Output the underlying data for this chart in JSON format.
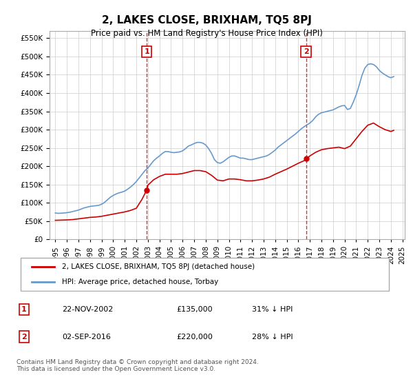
{
  "title": "2, LAKES CLOSE, BRIXHAM, TQ5 8PJ",
  "subtitle": "Price paid vs. HM Land Registry's House Price Index (HPI)",
  "ylabel_ticks": [
    "£0",
    "£50K",
    "£100K",
    "£150K",
    "£200K",
    "£250K",
    "£300K",
    "£350K",
    "£400K",
    "£450K",
    "£500K",
    "£550K"
  ],
  "ytick_values": [
    0,
    50000,
    100000,
    150000,
    200000,
    250000,
    300000,
    350000,
    400000,
    450000,
    500000,
    550000
  ],
  "ylim": [
    0,
    570000
  ],
  "sale1": {
    "date_num": 2002.9,
    "price": 135000,
    "label": "1",
    "date_str": "22-NOV-2002",
    "pct": "31% ↓ HPI"
  },
  "sale2": {
    "date_num": 2016.67,
    "price": 220000,
    "label": "2",
    "date_str": "02-SEP-2016",
    "pct": "28% ↓ HPI"
  },
  "legend_entry1": "2, LAKES CLOSE, BRIXHAM, TQ5 8PJ (detached house)",
  "legend_entry2": "HPI: Average price, detached house, Torbay",
  "table_row1": [
    "1",
    "22-NOV-2002",
    "£135,000",
    "31% ↓ HPI"
  ],
  "table_row2": [
    "2",
    "02-SEP-2016",
    "£220,000",
    "28% ↓ HPI"
  ],
  "footer": "Contains HM Land Registry data © Crown copyright and database right 2024.\nThis data is licensed under the Open Government Licence v3.0.",
  "red_color": "#cc0000",
  "blue_color": "#6699cc",
  "vline_color": "#cc0000",
  "hpi_data": {
    "years": [
      1995.0,
      1995.25,
      1995.5,
      1995.75,
      1996.0,
      1996.25,
      1996.5,
      1996.75,
      1997.0,
      1997.25,
      1997.5,
      1997.75,
      1998.0,
      1998.25,
      1998.5,
      1998.75,
      1999.0,
      1999.25,
      1999.5,
      1999.75,
      2000.0,
      2000.25,
      2000.5,
      2000.75,
      2001.0,
      2001.25,
      2001.5,
      2001.75,
      2002.0,
      2002.25,
      2002.5,
      2002.75,
      2003.0,
      2003.25,
      2003.5,
      2003.75,
      2004.0,
      2004.25,
      2004.5,
      2004.75,
      2005.0,
      2005.25,
      2005.5,
      2005.75,
      2006.0,
      2006.25,
      2006.5,
      2006.75,
      2007.0,
      2007.25,
      2007.5,
      2007.75,
      2008.0,
      2008.25,
      2008.5,
      2008.75,
      2009.0,
      2009.25,
      2009.5,
      2009.75,
      2010.0,
      2010.25,
      2010.5,
      2010.75,
      2011.0,
      2011.25,
      2011.5,
      2011.75,
      2012.0,
      2012.25,
      2012.5,
      2012.75,
      2013.0,
      2013.25,
      2013.5,
      2013.75,
      2014.0,
      2014.25,
      2014.5,
      2014.75,
      2015.0,
      2015.25,
      2015.5,
      2015.75,
      2016.0,
      2016.25,
      2016.5,
      2016.75,
      2017.0,
      2017.25,
      2017.5,
      2017.75,
      2018.0,
      2018.25,
      2018.5,
      2018.75,
      2019.0,
      2019.25,
      2019.5,
      2019.75,
      2020.0,
      2020.25,
      2020.5,
      2020.75,
      2021.0,
      2021.25,
      2021.5,
      2021.75,
      2022.0,
      2022.25,
      2022.5,
      2022.75,
      2023.0,
      2023.25,
      2023.5,
      2023.75,
      2024.0,
      2024.25
    ],
    "values": [
      72000,
      71000,
      71500,
      72000,
      73000,
      74000,
      76000,
      78000,
      80000,
      83000,
      86000,
      88000,
      90000,
      91000,
      92000,
      93000,
      96000,
      101000,
      108000,
      115000,
      120000,
      124000,
      127000,
      129000,
      132000,
      137000,
      143000,
      150000,
      158000,
      168000,
      178000,
      188000,
      195000,
      205000,
      215000,
      222000,
      228000,
      235000,
      240000,
      240000,
      238000,
      237000,
      238000,
      239000,
      242000,
      248000,
      255000,
      258000,
      262000,
      265000,
      265000,
      263000,
      258000,
      248000,
      235000,
      218000,
      210000,
      208000,
      212000,
      218000,
      224000,
      228000,
      228000,
      225000,
      222000,
      222000,
      220000,
      218000,
      218000,
      220000,
      222000,
      224000,
      226000,
      228000,
      232000,
      238000,
      244000,
      252000,
      258000,
      264000,
      270000,
      276000,
      282000,
      288000,
      295000,
      302000,
      308000,
      313000,
      318000,
      325000,
      335000,
      342000,
      346000,
      348000,
      350000,
      352000,
      354000,
      358000,
      362000,
      365000,
      366000,
      355000,
      358000,
      375000,
      395000,
      420000,
      448000,
      468000,
      478000,
      480000,
      478000,
      472000,
      462000,
      455000,
      450000,
      445000,
      442000,
      445000
    ]
  },
  "price_paid_data": {
    "years": [
      1995.0,
      1995.5,
      1996.0,
      1996.5,
      1997.0,
      1997.5,
      1998.0,
      1998.5,
      1999.0,
      1999.5,
      2000.0,
      2000.5,
      2001.0,
      2001.5,
      2002.0,
      2002.5,
      2002.9,
      2003.0,
      2003.5,
      2004.0,
      2004.5,
      2005.0,
      2005.5,
      2006.0,
      2006.5,
      2007.0,
      2007.5,
      2008.0,
      2008.5,
      2009.0,
      2009.5,
      2010.0,
      2010.5,
      2011.0,
      2011.5,
      2012.0,
      2012.5,
      2013.0,
      2013.5,
      2014.0,
      2014.5,
      2015.0,
      2015.5,
      2016.0,
      2016.5,
      2016.67,
      2017.0,
      2017.5,
      2018.0,
      2018.5,
      2019.0,
      2019.5,
      2020.0,
      2020.5,
      2021.0,
      2021.5,
      2022.0,
      2022.5,
      2023.0,
      2023.5,
      2024.0,
      2024.25
    ],
    "values": [
      52000,
      52500,
      53000,
      54000,
      56000,
      58000,
      60000,
      61000,
      63000,
      66000,
      69000,
      72000,
      75000,
      79000,
      85000,
      110000,
      135000,
      148000,
      163000,
      172000,
      178000,
      178000,
      178000,
      180000,
      184000,
      188000,
      188000,
      185000,
      175000,
      162000,
      160000,
      165000,
      165000,
      163000,
      160000,
      160000,
      162000,
      165000,
      170000,
      178000,
      185000,
      192000,
      200000,
      208000,
      215000,
      220000,
      228000,
      238000,
      245000,
      248000,
      250000,
      252000,
      248000,
      255000,
      275000,
      295000,
      312000,
      318000,
      308000,
      300000,
      295000,
      298000
    ]
  },
  "xtick_years": [
    1995,
    1996,
    1997,
    1998,
    1999,
    2000,
    2001,
    2002,
    2003,
    2004,
    2005,
    2006,
    2007,
    2008,
    2009,
    2010,
    2011,
    2012,
    2013,
    2014,
    2015,
    2016,
    2017,
    2018,
    2019,
    2020,
    2021,
    2022,
    2023,
    2024,
    2025
  ],
  "xlim": [
    1994.5,
    2025.2
  ]
}
